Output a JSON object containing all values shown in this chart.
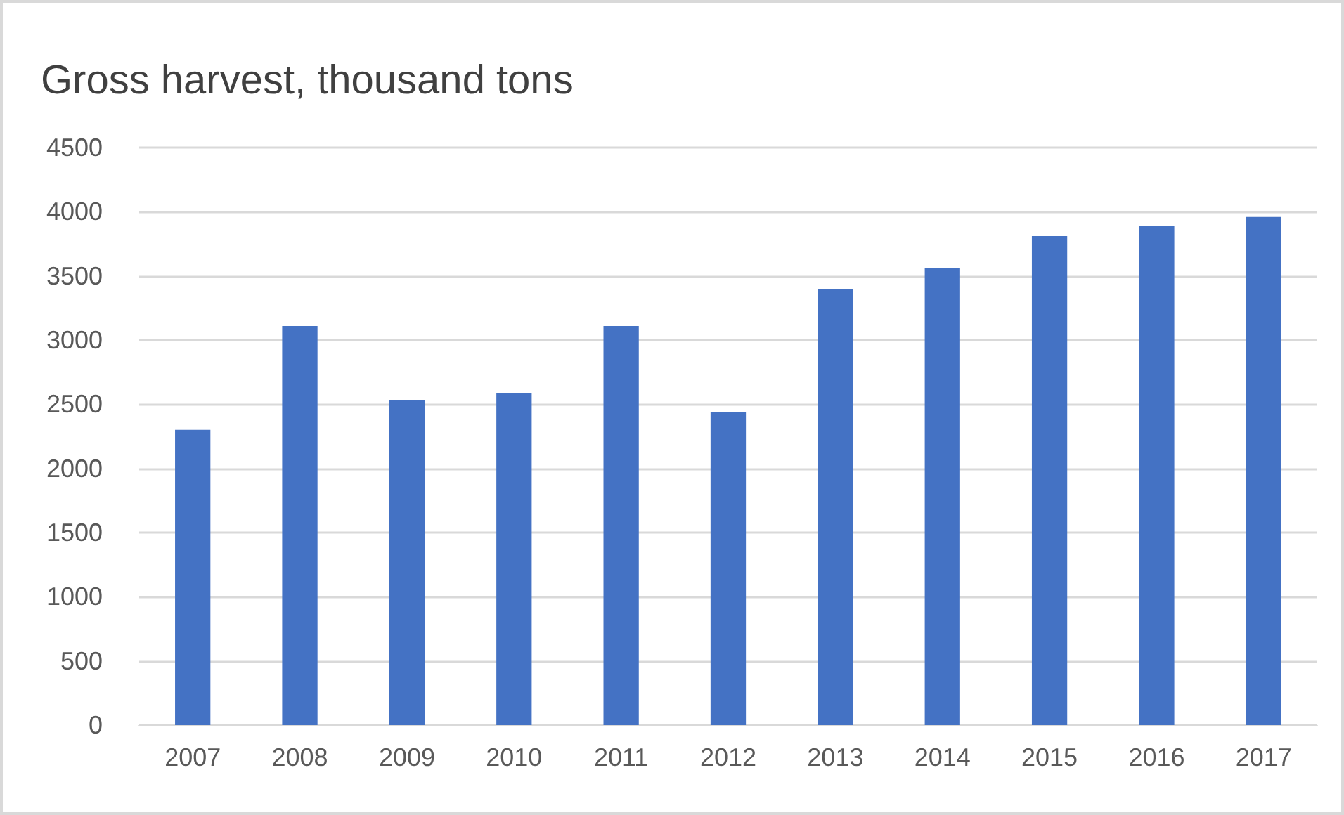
{
  "chart_data": {
    "type": "bar",
    "title": "Gross harvest, thousand tons",
    "categories": [
      "2007",
      "2008",
      "2009",
      "2010",
      "2011",
      "2012",
      "2013",
      "2014",
      "2015",
      "2016",
      "2017"
    ],
    "values": [
      2300,
      3110,
      2530,
      2590,
      3110,
      2440,
      3400,
      3560,
      3810,
      3890,
      3960
    ],
    "color": "#4472c4",
    "ylim": [
      0,
      4500
    ],
    "yticks": [
      0,
      500,
      1000,
      1500,
      2000,
      2500,
      3000,
      3500,
      4000,
      4500
    ],
    "grid": true
  }
}
